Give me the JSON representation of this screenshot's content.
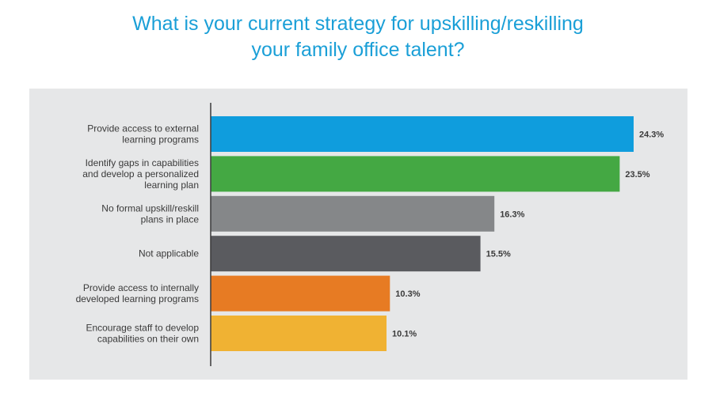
{
  "chart_data": {
    "type": "bar",
    "orientation": "horizontal",
    "title_lines": [
      "What is your current strategy for upskilling/reskilling",
      "your family office talent?"
    ],
    "categories": [
      [
        "Provide access to external",
        "learning programs"
      ],
      [
        "Identify gaps in capabilities",
        "and develop a personalized",
        "learning plan"
      ],
      [
        "No formal upskill/reskill",
        "plans in place"
      ],
      [
        "Not applicable"
      ],
      [
        "Provide access to internally",
        "developed learning programs"
      ],
      [
        "Encourage staff to develop",
        "capabilities on their own"
      ]
    ],
    "values": [
      24.3,
      23.5,
      16.3,
      15.5,
      10.3,
      10.1
    ],
    "value_labels": [
      "24.3%",
      "23.5%",
      "16.3%",
      "15.5%",
      "10.3%",
      "10.1%"
    ],
    "colors": [
      "#0f9ddd",
      "#44a843",
      "#858789",
      "#5a5b5f",
      "#e77b23",
      "#f0b233"
    ],
    "background_color": "#e6e7e8",
    "title_color": "#1a9fd7",
    "xlim": [
      0,
      24.3
    ],
    "grid": false,
    "legend": "none"
  }
}
